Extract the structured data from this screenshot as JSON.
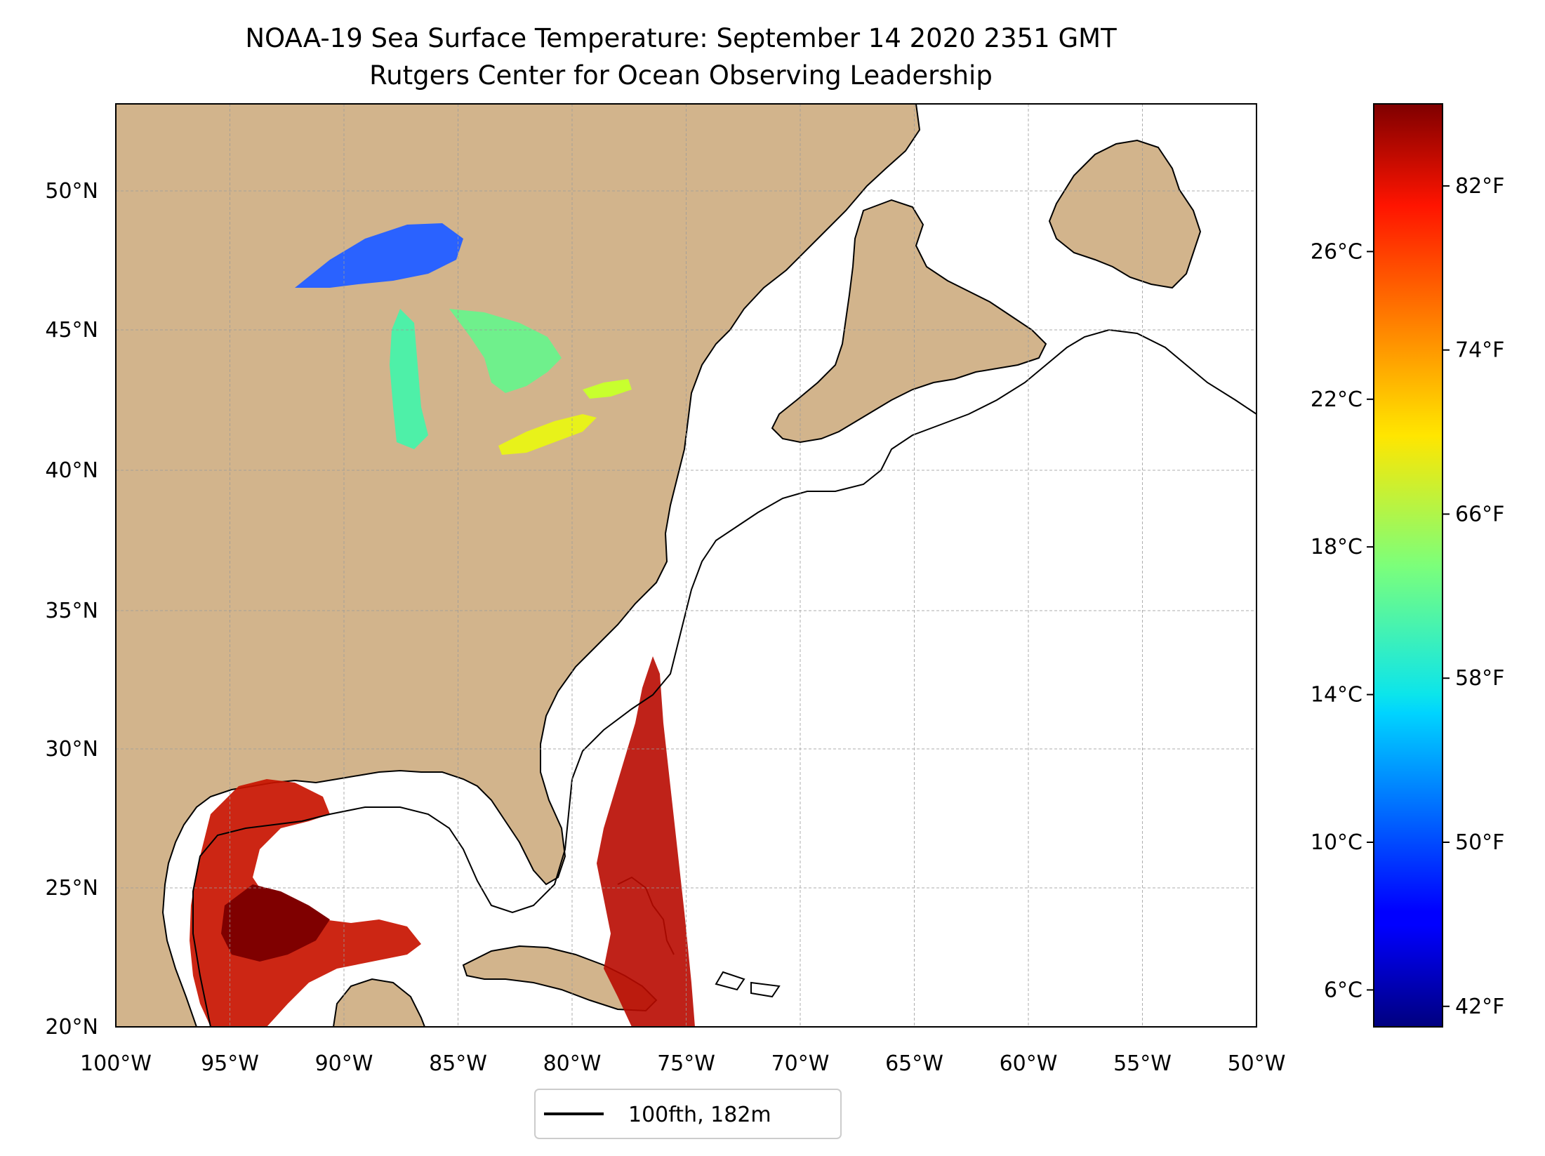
{
  "title_line1": "NOAA-19 Sea Surface Temperature: September 14 2020 2351 GMT",
  "title_line2": "Rutgers Center for Ocean Observing Leadership",
  "map": {
    "lon_range": [
      -100,
      -50
    ],
    "lat_range": [
      20,
      52
    ],
    "lon_ticks": [
      "100°W",
      "95°W",
      "90°W",
      "85°W",
      "80°W",
      "75°W",
      "70°W",
      "65°W",
      "60°W",
      "55°W",
      "50°W"
    ],
    "lat_ticks": [
      "20°N",
      "25°N",
      "30°N",
      "35°N",
      "40°N",
      "45°N",
      "50°N"
    ],
    "land_color": "#d2b48c",
    "water_color": "#ffffff",
    "inland_water_color": "#9bbbe6",
    "gridlines": true
  },
  "legend": {
    "label": "100fth, 182m",
    "placement": "bottom-center",
    "line_color": "#000000"
  },
  "colorbar": {
    "colormap": "jet",
    "range_c": [
      5,
      30
    ],
    "celsius_ticks": [
      "6°C",
      "10°C",
      "14°C",
      "18°C",
      "22°C",
      "26°C"
    ],
    "celsius_values": [
      6,
      10,
      14,
      18,
      22,
      26
    ],
    "fahrenheit_ticks": [
      "42°F",
      "50°F",
      "58°F",
      "66°F",
      "74°F",
      "82°F"
    ],
    "fahrenheit_values": [
      42,
      50,
      58,
      66,
      74,
      82
    ]
  }
}
